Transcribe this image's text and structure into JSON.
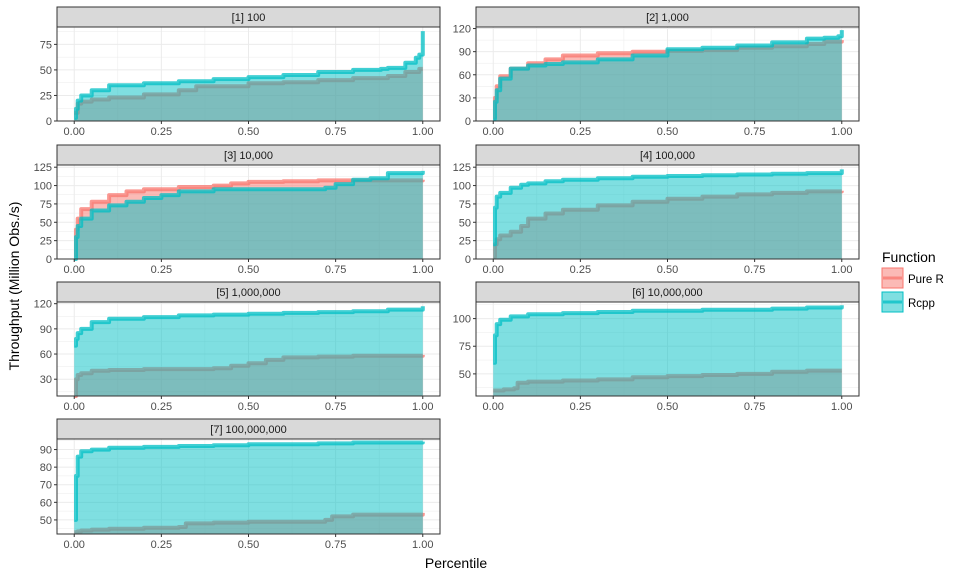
{
  "figure": {
    "xlabel": "Percentile",
    "ylabel": "Throughput (Million Obs./s)",
    "legend_title": "Function",
    "legend_position": "right",
    "grid": true,
    "colors": {
      "Pure R": "#F8766D",
      "Rcpp": "#00BFC4",
      "strip_fill": "#D9D9D9",
      "grid": "#EBEBEB"
    }
  },
  "chart_data": [
    {
      "type": "area",
      "title": "[1] 100",
      "xlim": [
        0,
        1
      ],
      "ylim": [
        0,
        92
      ],
      "xticks": [
        0.0,
        0.25,
        0.5,
        0.75,
        1.0
      ],
      "xticklabels": [
        "0.00",
        "0.25",
        "0.50",
        "0.75",
        "1.00"
      ],
      "yticks": [
        0,
        25,
        50,
        75
      ],
      "yticklabels": [
        "0",
        "25",
        "50",
        "75"
      ],
      "series": [
        {
          "name": "Pure R",
          "x": [
            0,
            0.01,
            0.02,
            0.05,
            0.1,
            0.2,
            0.3,
            0.35,
            0.5,
            0.6,
            0.7,
            0.8,
            0.9,
            0.95,
            0.99,
            1.0
          ],
          "y": [
            8,
            17,
            19,
            21,
            23,
            26,
            30,
            34,
            37,
            38,
            40,
            42,
            44,
            48,
            51,
            51
          ]
        },
        {
          "name": "Rcpp",
          "x": [
            0,
            0.005,
            0.01,
            0.02,
            0.05,
            0.1,
            0.2,
            0.3,
            0.4,
            0.5,
            0.6,
            0.7,
            0.8,
            0.88,
            0.9,
            0.95,
            0.98,
            0.99,
            1.0
          ],
          "y": [
            3,
            12,
            20,
            25,
            30,
            35,
            37,
            39,
            41,
            43,
            45,
            48,
            50,
            51,
            52,
            57,
            62,
            65,
            88
          ]
        }
      ]
    },
    {
      "type": "area",
      "title": "[2] 1,000",
      "xlim": [
        0,
        1
      ],
      "ylim": [
        0,
        122
      ],
      "xticks": [
        0.0,
        0.25,
        0.5,
        0.75,
        1.0
      ],
      "xticklabels": [
        "0.00",
        "0.25",
        "0.50",
        "0.75",
        "1.00"
      ],
      "yticks": [
        0,
        30,
        60,
        90,
        120
      ],
      "yticklabels": [
        "0",
        "30",
        "60",
        "90",
        "120"
      ],
      "series": [
        {
          "name": "Pure R",
          "x": [
            0,
            0.005,
            0.01,
            0.02,
            0.05,
            0.1,
            0.15,
            0.2,
            0.3,
            0.4,
            0.5,
            0.6,
            0.7,
            0.8,
            0.9,
            0.95,
            1.0
          ],
          "y": [
            5,
            30,
            45,
            58,
            68,
            75,
            80,
            85,
            88,
            90,
            91,
            92,
            95,
            97,
            100,
            103,
            105
          ]
        },
        {
          "name": "Rcpp",
          "x": [
            0,
            0.005,
            0.01,
            0.02,
            0.05,
            0.1,
            0.15,
            0.2,
            0.3,
            0.4,
            0.5,
            0.6,
            0.7,
            0.8,
            0.9,
            0.95,
            0.99,
            1.0
          ],
          "y": [
            3,
            25,
            40,
            55,
            68,
            72,
            74,
            76,
            80,
            85,
            93,
            95,
            98,
            102,
            107,
            108,
            110,
            118
          ]
        }
      ]
    },
    {
      "type": "area",
      "title": "[3] 10,000",
      "xlim": [
        0,
        1
      ],
      "ylim": [
        0,
        128
      ],
      "xticks": [
        0.0,
        0.25,
        0.5,
        0.75,
        1.0
      ],
      "xticklabels": [
        "0.00",
        "0.25",
        "0.50",
        "0.75",
        "1.00"
      ],
      "yticks": [
        0,
        25,
        50,
        75,
        100,
        125
      ],
      "yticklabels": [
        "0",
        "25",
        "50",
        "75",
        "100",
        "125"
      ],
      "series": [
        {
          "name": "Pure R",
          "x": [
            0,
            0.005,
            0.01,
            0.02,
            0.05,
            0.1,
            0.15,
            0.2,
            0.3,
            0.4,
            0.45,
            0.5,
            0.6,
            0.7,
            0.75,
            0.8,
            0.9,
            1.0
          ],
          "y": [
            5,
            40,
            55,
            68,
            78,
            87,
            92,
            95,
            98,
            100,
            103,
            105,
            106,
            107,
            107,
            107,
            107,
            108
          ]
        },
        {
          "name": "Rcpp",
          "x": [
            0,
            0.005,
            0.01,
            0.02,
            0.05,
            0.1,
            0.15,
            0.2,
            0.25,
            0.3,
            0.4,
            0.5,
            0.6,
            0.7,
            0.72,
            0.75,
            0.8,
            0.85,
            0.9,
            1.0
          ],
          "y": [
            0,
            30,
            45,
            55,
            66,
            73,
            78,
            83,
            87,
            92,
            95,
            95,
            95,
            95,
            97,
            102,
            108,
            110,
            117,
            120
          ]
        }
      ]
    },
    {
      "type": "area",
      "title": "[4] 100,000",
      "xlim": [
        0,
        1
      ],
      "ylim": [
        0,
        128
      ],
      "xticks": [
        0.0,
        0.25,
        0.5,
        0.75,
        1.0
      ],
      "xticklabels": [
        "0.00",
        "0.25",
        "0.50",
        "0.75",
        "1.00"
      ],
      "yticks": [
        0,
        25,
        50,
        75,
        100,
        125
      ],
      "yticklabels": [
        "0",
        "25",
        "50",
        "75",
        "100",
        "125"
      ],
      "series": [
        {
          "name": "Pure R",
          "x": [
            0,
            0.005,
            0.01,
            0.02,
            0.05,
            0.08,
            0.1,
            0.15,
            0.2,
            0.3,
            0.4,
            0.5,
            0.6,
            0.7,
            0.8,
            0.9,
            1.0
          ],
          "y": [
            3,
            20,
            27,
            32,
            37,
            45,
            55,
            62,
            67,
            73,
            78,
            82,
            85,
            88,
            90,
            92,
            93
          ]
        },
        {
          "name": "Rcpp",
          "x": [
            0,
            0.005,
            0.01,
            0.02,
            0.05,
            0.08,
            0.1,
            0.15,
            0.2,
            0.3,
            0.4,
            0.5,
            0.6,
            0.7,
            0.8,
            0.9,
            1.0
          ],
          "y": [
            20,
            70,
            85,
            90,
            97,
            101,
            103,
            106,
            108,
            110,
            112,
            113,
            114,
            115,
            116,
            117,
            122
          ]
        }
      ]
    },
    {
      "type": "area",
      "title": "[5] 1,000,000",
      "xlim": [
        0,
        1
      ],
      "ylim": [
        10,
        122
      ],
      "xticks": [
        0.0,
        0.25,
        0.5,
        0.75,
        1.0
      ],
      "xticklabels": [
        "0.00",
        "0.25",
        "0.50",
        "0.75",
        "1.00"
      ],
      "yticks": [
        30,
        60,
        90,
        120
      ],
      "yticklabels": [
        "30",
        "60",
        "90",
        "120"
      ],
      "series": [
        {
          "name": "Pure R",
          "x": [
            0,
            0.005,
            0.01,
            0.02,
            0.05,
            0.1,
            0.2,
            0.3,
            0.4,
            0.45,
            0.5,
            0.55,
            0.6,
            0.7,
            0.8,
            1.0
          ],
          "y": [
            10,
            30,
            35,
            37,
            40,
            41,
            42,
            42,
            43,
            46,
            49,
            53,
            56,
            57,
            58,
            59
          ]
        },
        {
          "name": "Rcpp",
          "x": [
            0,
            0.005,
            0.01,
            0.02,
            0.05,
            0.1,
            0.2,
            0.3,
            0.4,
            0.5,
            0.6,
            0.7,
            0.8,
            0.9,
            1.0
          ],
          "y": [
            70,
            78,
            85,
            90,
            98,
            102,
            104,
            106,
            107,
            108,
            109,
            110,
            111,
            113,
            117
          ]
        }
      ]
    },
    {
      "type": "area",
      "title": "[6] 10,000,000",
      "xlim": [
        0,
        1
      ],
      "ylim": [
        30,
        115
      ],
      "xticks": [
        0.0,
        0.25,
        0.5,
        0.75,
        1.0
      ],
      "xticklabels": [
        "0.00",
        "0.25",
        "0.50",
        "0.75",
        "1.00"
      ],
      "yticks": [
        50,
        75,
        100
      ],
      "yticklabels": [
        "50",
        "75",
        "100"
      ],
      "series": [
        {
          "name": "Pure R",
          "x": [
            0,
            0.03,
            0.06,
            0.07,
            0.1,
            0.2,
            0.3,
            0.4,
            0.5,
            0.6,
            0.7,
            0.8,
            0.9,
            1.0
          ],
          "y": [
            35,
            36,
            37,
            42,
            43,
            44,
            45,
            47,
            48,
            49,
            50,
            52,
            53,
            53
          ]
        },
        {
          "name": "Rcpp",
          "x": [
            0,
            0.005,
            0.01,
            0.02,
            0.05,
            0.1,
            0.2,
            0.3,
            0.4,
            0.5,
            0.6,
            0.7,
            0.8,
            0.9,
            1.0
          ],
          "y": [
            60,
            85,
            95,
            99,
            102,
            104,
            105,
            106,
            107,
            107,
            108,
            108,
            109,
            110,
            112
          ]
        }
      ]
    },
    {
      "type": "area",
      "title": "[7] 100,000,000",
      "xlim": [
        0,
        1
      ],
      "ylim": [
        42,
        96
      ],
      "xticks": [
        0.0,
        0.25,
        0.5,
        0.75,
        1.0
      ],
      "xticklabels": [
        "0.00",
        "0.25",
        "0.50",
        "0.75",
        "1.00"
      ],
      "yticks": [
        50,
        60,
        70,
        80,
        90
      ],
      "yticklabels": [
        "50",
        "60",
        "70",
        "80",
        "90"
      ],
      "series": [
        {
          "name": "Pure R",
          "x": [
            0,
            0.01,
            0.02,
            0.05,
            0.1,
            0.2,
            0.3,
            0.32,
            0.4,
            0.5,
            0.6,
            0.7,
            0.72,
            0.74,
            0.8,
            0.9,
            1.0
          ],
          "y": [
            43,
            43.5,
            44,
            44.5,
            45,
            45.5,
            46,
            48,
            48.5,
            49,
            49,
            49,
            50,
            52,
            53,
            53,
            54
          ]
        },
        {
          "name": "Rcpp",
          "x": [
            0,
            0.005,
            0.01,
            0.02,
            0.05,
            0.1,
            0.2,
            0.3,
            0.4,
            0.5,
            0.6,
            0.7,
            0.8,
            0.9,
            1.0
          ],
          "y": [
            50,
            75,
            86,
            89,
            90,
            91,
            91.5,
            92,
            92.5,
            93,
            93,
            93.5,
            94,
            94,
            94.5
          ]
        }
      ]
    }
  ]
}
